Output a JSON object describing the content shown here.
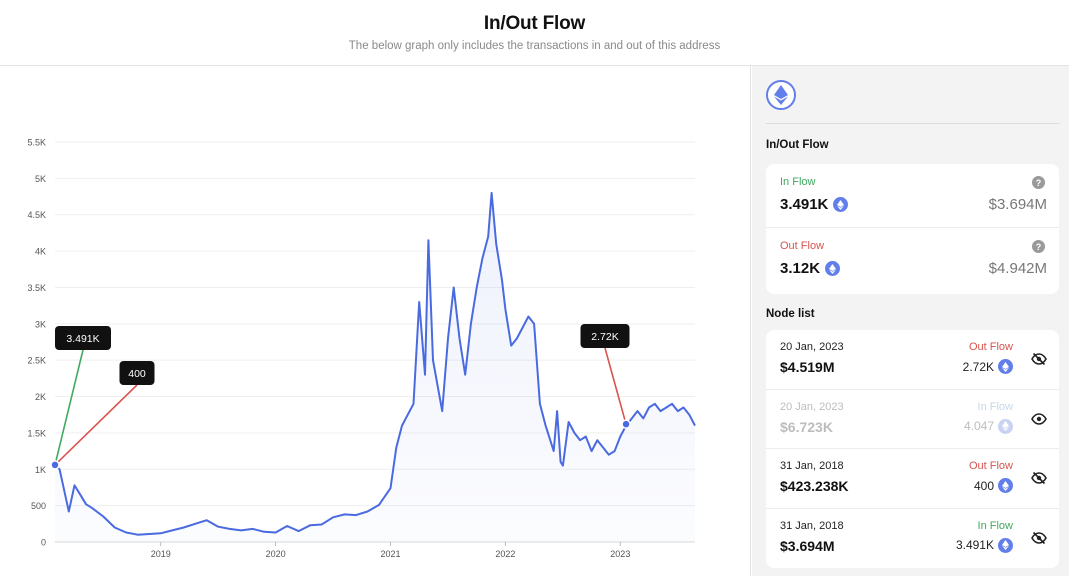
{
  "header": {
    "title": "In/Out Flow",
    "subtitle": "The below graph only includes the transactions in and out of this address"
  },
  "colors": {
    "line": "#4a6ae0",
    "in_flow": "#41a85f",
    "out_flow": "#d9534f",
    "eth": "#627eea"
  },
  "chart_data": {
    "type": "area",
    "title": "In/Out Flow",
    "xlabel": "",
    "ylabel": "",
    "ylim": [
      0,
      5500
    ],
    "y_ticks": [
      "0",
      "500",
      "1K",
      "1.5K",
      "2K",
      "2.5K",
      "3K",
      "3.5K",
      "4K",
      "4.5K",
      "5K",
      "5.5K"
    ],
    "x_ticks": [
      "2019",
      "2020",
      "2021",
      "2022",
      "2023"
    ],
    "x": [
      2018.08,
      2018.12,
      2018.2,
      2018.25,
      2018.3,
      2018.35,
      2018.4,
      2018.5,
      2018.6,
      2018.7,
      2018.8,
      2018.9,
      2019.0,
      2019.1,
      2019.2,
      2019.3,
      2019.4,
      2019.5,
      2019.6,
      2019.7,
      2019.8,
      2019.9,
      2020.0,
      2020.1,
      2020.2,
      2020.3,
      2020.4,
      2020.5,
      2020.6,
      2020.7,
      2020.8,
      2020.9,
      2021.0,
      2021.05,
      2021.1,
      2021.2,
      2021.25,
      2021.3,
      2021.33,
      2021.37,
      2021.45,
      2021.5,
      2021.55,
      2021.6,
      2021.65,
      2021.7,
      2021.75,
      2021.8,
      2021.85,
      2021.88,
      2021.92,
      2021.97,
      2022.0,
      2022.05,
      2022.1,
      2022.2,
      2022.25,
      2022.3,
      2022.35,
      2022.42,
      2022.45,
      2022.48,
      2022.5,
      2022.55,
      2022.6,
      2022.65,
      2022.7,
      2022.75,
      2022.8,
      2022.85,
      2022.9,
      2022.95,
      2023.0,
      2023.05,
      2023.1,
      2023.15,
      2023.2,
      2023.25,
      2023.3,
      2023.35,
      2023.4,
      2023.45,
      2023.5,
      2023.55,
      2023.6,
      2023.65
    ],
    "values": [
      1060,
      1000,
      420,
      780,
      650,
      520,
      470,
      350,
      200,
      130,
      100,
      110,
      120,
      160,
      200,
      250,
      300,
      210,
      180,
      160,
      180,
      140,
      130,
      220,
      150,
      230,
      240,
      340,
      380,
      370,
      420,
      510,
      740,
      1300,
      1600,
      1900,
      3300,
      2300,
      4150,
      2500,
      1800,
      2800,
      3500,
      2800,
      2300,
      3000,
      3500,
      3900,
      4200,
      4800,
      4100,
      3600,
      3200,
      2700,
      2800,
      3100,
      3000,
      1900,
      1600,
      1250,
      1800,
      1100,
      1050,
      1650,
      1500,
      1400,
      1450,
      1250,
      1400,
      1300,
      1200,
      1250,
      1450,
      1600,
      1700,
      1800,
      1700,
      1850,
      1900,
      1800,
      1850,
      1900,
      1800,
      1850,
      1750,
      1600
    ],
    "annotations": [
      {
        "label": "3.491K",
        "x": 2018.08,
        "y": 1060,
        "color": "#41a85f"
      },
      {
        "label": "400",
        "x": 2018.08,
        "y": 1060,
        "color": "#d9534f"
      },
      {
        "label": "2.72K",
        "x": 2023.05,
        "y": 1620,
        "color": "#d9534f"
      }
    ]
  },
  "sidebar": {
    "in_out_title": "In/Out Flow",
    "in_flow": {
      "label": "In Flow",
      "amount": "3.491K",
      "usd": "$3.694M"
    },
    "out_flow": {
      "label": "Out Flow",
      "amount": "3.12K",
      "usd": "$4.942M"
    },
    "node_list_title": "Node list",
    "nodes": [
      {
        "date": "20 Jan, 2023",
        "usd": "$4.519M",
        "direction": "Out Flow",
        "amount": "2.72K"
      },
      {
        "date": "20 Jan, 2023",
        "usd": "$6.723K",
        "direction": "In Flow",
        "amount": "4.047"
      },
      {
        "date": "31 Jan, 2018",
        "usd": "$423.238K",
        "direction": "Out Flow",
        "amount": "400"
      },
      {
        "date": "31 Jan, 2018",
        "usd": "$3.694M",
        "direction": "In Flow",
        "amount": "3.491K"
      }
    ]
  }
}
